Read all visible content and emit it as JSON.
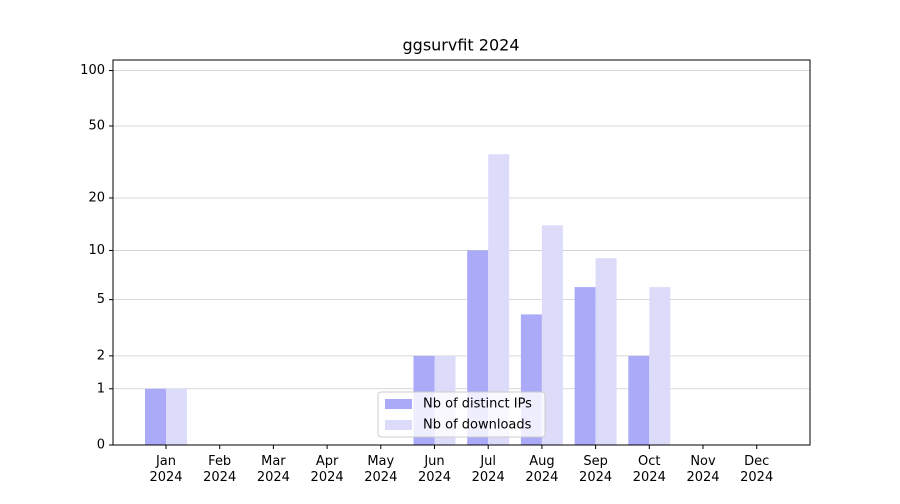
{
  "chart_data": {
    "type": "bar",
    "title": "ggsurvfit 2024",
    "categories": [
      "Jan 2024",
      "Feb 2024",
      "Mar 2024",
      "Apr 2024",
      "May 2024",
      "Jun 2024",
      "Jul 2024",
      "Aug 2024",
      "Sep 2024",
      "Oct 2024",
      "Nov 2024",
      "Dec 2024"
    ],
    "series": [
      {
        "name": "Nb of distinct IPs",
        "color": "#aaaaf8",
        "values": [
          1,
          0,
          0,
          0,
          0,
          2,
          10,
          4,
          6,
          2,
          0,
          0
        ]
      },
      {
        "name": "Nb of downloads",
        "color": "#dcdcfa",
        "values": [
          1,
          0,
          0,
          0,
          0,
          2,
          35,
          14,
          9,
          6,
          0,
          0
        ]
      }
    ],
    "yscale": "log1p",
    "ylim": [
      0,
      114
    ],
    "yticks": [
      0,
      1,
      2,
      5,
      10,
      20,
      50,
      100
    ],
    "grid": true,
    "legend": "lower center"
  }
}
